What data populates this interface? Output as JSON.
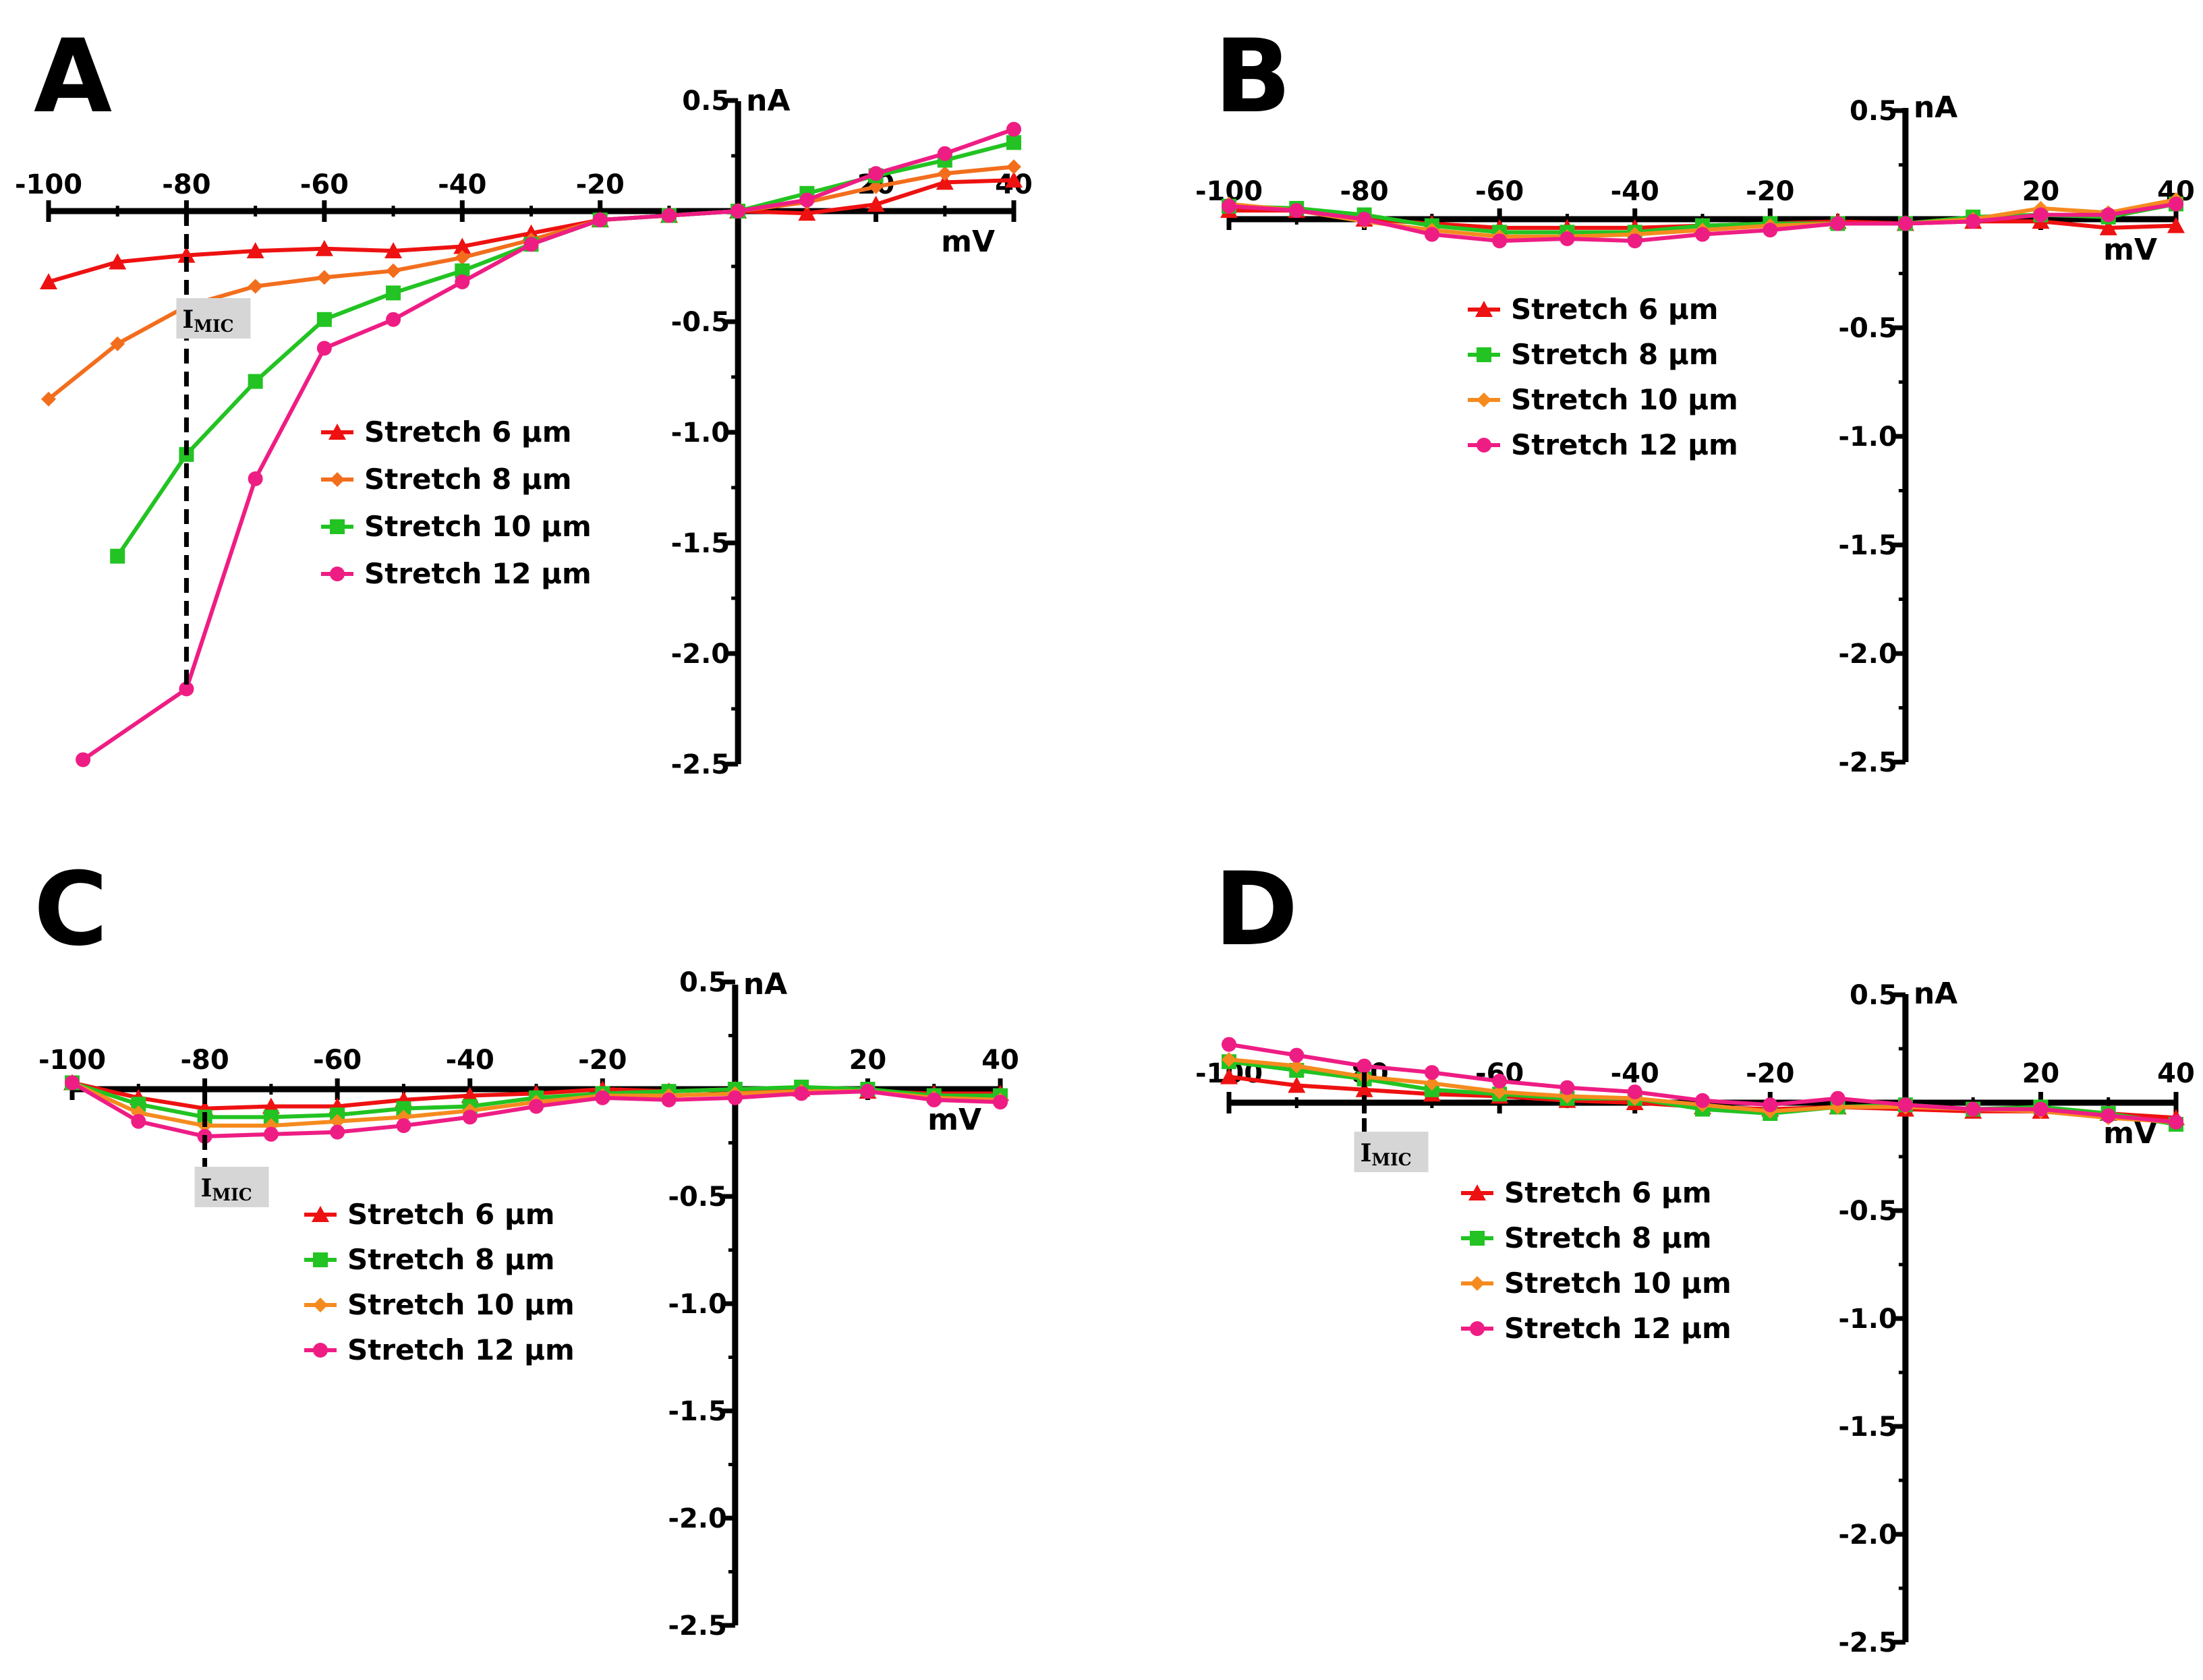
{
  "chart_data": [
    {
      "panel": "A",
      "type": "line",
      "xlabel": "mV",
      "ylabel": "nA",
      "x_ticks": [
        -100,
        -80,
        -60,
        -40,
        -20,
        20,
        40
      ],
      "y_ticks": [
        0.5,
        -0.5,
        -1.0,
        -1.5,
        -2.0,
        -2.5
      ],
      "xlim": [
        -100,
        40
      ],
      "ylim": [
        -2.5,
        0.5
      ],
      "annotation": {
        "label": "I",
        "subscript": "MIC",
        "x": -80
      },
      "series": [
        {
          "name": "Stretch 6 µm",
          "color": "#ee1111",
          "marker": "triangle",
          "x": [
            -100,
            -90,
            -80,
            -70,
            -60,
            -50,
            -40,
            -30,
            -20,
            -10,
            0,
            10,
            20,
            30,
            40
          ],
          "y": [
            -0.32,
            -0.23,
            -0.2,
            -0.18,
            -0.17,
            -0.18,
            -0.16,
            -0.1,
            -0.04,
            -0.02,
            0.0,
            -0.01,
            0.03,
            0.13,
            0.14
          ]
        },
        {
          "name": "Stretch 8 µm",
          "color": "#f26e1d",
          "marker": "diamond",
          "x": [
            -100,
            -90,
            -80,
            -70,
            -60,
            -50,
            -40,
            -30,
            -20,
            -10,
            0,
            10,
            20,
            30,
            40
          ],
          "y": [
            -0.85,
            -0.6,
            -0.43,
            -0.34,
            -0.3,
            -0.27,
            -0.21,
            -0.13,
            -0.04,
            -0.02,
            0.0,
            0.04,
            0.11,
            0.17,
            0.2
          ]
        },
        {
          "name": "Stretch 10 µm",
          "color": "#22c322",
          "marker": "square",
          "x": [
            -90,
            -80,
            -70,
            -60,
            -50,
            -40,
            -30,
            -20,
            -10,
            0,
            10,
            20,
            30,
            40
          ],
          "y": [
            -1.56,
            -1.1,
            -0.77,
            -0.49,
            -0.37,
            -0.27,
            -0.15,
            -0.04,
            -0.02,
            0.0,
            0.08,
            0.16,
            0.23,
            0.31
          ]
        },
        {
          "name": "Stretch 12 µm",
          "color": "#ee1d84",
          "marker": "circle",
          "x": [
            -95,
            -80,
            -70,
            -60,
            -50,
            -40,
            -30,
            -20,
            -10,
            0,
            10,
            20,
            30,
            40
          ],
          "y": [
            -2.48,
            -2.16,
            -1.21,
            -0.62,
            -0.49,
            -0.32,
            -0.15,
            -0.04,
            -0.02,
            0.0,
            0.05,
            0.17,
            0.26,
            0.37
          ]
        }
      ]
    },
    {
      "panel": "B",
      "type": "line",
      "xlabel": "mV",
      "ylabel": "nA",
      "x_ticks": [
        -100,
        -80,
        -60,
        -40,
        -20,
        20,
        40
      ],
      "y_ticks": [
        0.5,
        -0.5,
        -1.0,
        -1.5,
        -2.0,
        -2.5
      ],
      "xlim": [
        -100,
        40
      ],
      "ylim": [
        -2.5,
        0.5
      ],
      "series": [
        {
          "name": "Stretch 6 µm",
          "color": "#ee1111",
          "marker": "triangle",
          "x": [
            -100,
            -90,
            -80,
            -70,
            -60,
            -50,
            -40,
            -30,
            -20,
            -10,
            0,
            10,
            20,
            30,
            40
          ],
          "y": [
            0.04,
            0.04,
            0.0,
            -0.02,
            -0.04,
            -0.04,
            -0.04,
            -0.03,
            -0.02,
            -0.01,
            -0.02,
            -0.01,
            -0.01,
            -0.04,
            -0.03
          ]
        },
        {
          "name": "Stretch 8 µm",
          "color": "#22c322",
          "marker": "square",
          "x": [
            -100,
            -90,
            -80,
            -70,
            -60,
            -50,
            -40,
            -30,
            -20,
            -10,
            0,
            10,
            20,
            30,
            40
          ],
          "y": [
            0.06,
            0.05,
            0.02,
            -0.03,
            -0.06,
            -0.06,
            -0.06,
            -0.03,
            -0.02,
            -0.02,
            -0.02,
            0.01,
            0.02,
            0.01,
            0.07
          ]
        },
        {
          "name": "Stretch 10 µm",
          "color": "#f58b1f",
          "marker": "diamond",
          "x": [
            -100,
            -90,
            -80,
            -70,
            -60,
            -50,
            -40,
            -30,
            -20,
            -10,
            0,
            10,
            20,
            30,
            40
          ],
          "y": [
            0.07,
            0.04,
            -0.01,
            -0.05,
            -0.08,
            -0.08,
            -0.07,
            -0.05,
            -0.03,
            -0.02,
            -0.02,
            0.0,
            0.05,
            0.03,
            0.09
          ]
        },
        {
          "name": "Stretch 12 µm",
          "color": "#ee1d84",
          "marker": "circle",
          "x": [
            -100,
            -90,
            -80,
            -70,
            -60,
            -50,
            -40,
            -30,
            -20,
            -10,
            0,
            10,
            20,
            30,
            40
          ],
          "y": [
            0.06,
            0.04,
            0.0,
            -0.07,
            -0.1,
            -0.09,
            -0.1,
            -0.07,
            -0.05,
            -0.02,
            -0.02,
            -0.01,
            0.02,
            0.02,
            0.07
          ]
        }
      ]
    },
    {
      "panel": "C",
      "type": "line",
      "xlabel": "mV",
      "ylabel": "nA",
      "x_ticks": [
        -100,
        -80,
        -60,
        -40,
        -20,
        20,
        40
      ],
      "y_ticks": [
        0.5,
        -0.5,
        -1.0,
        -1.5,
        -2.0,
        -2.5
      ],
      "xlim": [
        -100,
        40
      ],
      "ylim": [
        -2.5,
        0.5
      ],
      "annotation": {
        "label": "I",
        "subscript": "MIC",
        "x": -80
      },
      "series": [
        {
          "name": "Stretch 6 µm",
          "color": "#ee1111",
          "marker": "triangle",
          "x": [
            -100,
            -90,
            -80,
            -70,
            -60,
            -50,
            -40,
            -30,
            -20,
            -10,
            0,
            10,
            20,
            30,
            40
          ],
          "y": [
            0.03,
            -0.04,
            -0.09,
            -0.08,
            -0.08,
            -0.05,
            -0.03,
            -0.02,
            0.0,
            -0.01,
            0.0,
            0.0,
            -0.01,
            -0.02,
            -0.02
          ]
        },
        {
          "name": "Stretch 8 µm",
          "color": "#22c322",
          "marker": "square",
          "x": [
            -100,
            -90,
            -80,
            -70,
            -60,
            -50,
            -40,
            -30,
            -20,
            -10,
            0,
            10,
            20,
            30,
            40
          ],
          "y": [
            0.03,
            -0.07,
            -0.13,
            -0.13,
            -0.12,
            -0.09,
            -0.08,
            -0.04,
            -0.02,
            -0.01,
            0.0,
            0.01,
            0.0,
            -0.03,
            -0.03
          ]
        },
        {
          "name": "Stretch 10 µm",
          "color": "#f58b1f",
          "marker": "diamond",
          "x": [
            -100,
            -90,
            -80,
            -70,
            -60,
            -50,
            -40,
            -30,
            -20,
            -10,
            0,
            10,
            20,
            30,
            40
          ],
          "y": [
            0.03,
            -0.11,
            -0.17,
            -0.17,
            -0.15,
            -0.13,
            -0.1,
            -0.06,
            -0.03,
            -0.03,
            -0.02,
            -0.01,
            -0.01,
            -0.04,
            -0.05
          ]
        },
        {
          "name": "Stretch 12 µm",
          "color": "#ee1d84",
          "marker": "circle",
          "x": [
            -100,
            -90,
            -80,
            -70,
            -60,
            -50,
            -40,
            -30,
            -20,
            -10,
            0,
            10,
            20,
            30,
            40
          ],
          "y": [
            0.03,
            -0.15,
            -0.22,
            -0.21,
            -0.2,
            -0.17,
            -0.13,
            -0.08,
            -0.04,
            -0.05,
            -0.04,
            -0.02,
            -0.01,
            -0.05,
            -0.06
          ]
        }
      ]
    },
    {
      "panel": "D",
      "type": "line",
      "xlabel": "mV",
      "ylabel": "nA",
      "x_ticks": [
        -100,
        -80,
        -60,
        -40,
        -20,
        20,
        40
      ],
      "y_ticks": [
        0.5,
        -0.5,
        -1.0,
        -1.5,
        -2.0,
        -2.5
      ],
      "xlim": [
        -100,
        40
      ],
      "ylim": [
        -2.5,
        0.5
      ],
      "annotation": {
        "label": "I",
        "subscript": "MIC",
        "x": -80
      },
      "series": [
        {
          "name": "Stretch 6 µm",
          "color": "#ee1111",
          "marker": "triangle",
          "x": [
            -100,
            -90,
            -80,
            -70,
            -60,
            -50,
            -40,
            -30,
            -20,
            -10,
            0,
            10,
            20,
            30,
            40
          ],
          "y": [
            0.12,
            0.08,
            0.06,
            0.04,
            0.03,
            0.01,
            0.0,
            -0.02,
            -0.03,
            -0.02,
            -0.03,
            -0.04,
            -0.04,
            -0.05,
            -0.07
          ]
        },
        {
          "name": "Stretch 8 µm",
          "color": "#22c322",
          "marker": "square",
          "x": [
            -100,
            -90,
            -80,
            -70,
            -60,
            -50,
            -40,
            -30,
            -20,
            -10,
            0,
            10,
            20,
            30,
            40
          ],
          "y": [
            0.19,
            0.15,
            0.11,
            0.06,
            0.04,
            0.02,
            0.02,
            -0.03,
            -0.05,
            -0.02,
            -0.01,
            -0.03,
            -0.02,
            -0.05,
            -0.1
          ]
        },
        {
          "name": "Stretch 10 µm",
          "color": "#f58b1f",
          "marker": "diamond",
          "x": [
            -100,
            -90,
            -80,
            -70,
            -60,
            -50,
            -40,
            -30,
            -20,
            -10,
            0,
            10,
            20,
            30,
            40
          ],
          "y": [
            0.2,
            0.17,
            0.12,
            0.09,
            0.05,
            0.03,
            0.02,
            -0.01,
            -0.04,
            -0.02,
            -0.02,
            -0.03,
            -0.04,
            -0.07,
            -0.09
          ]
        },
        {
          "name": "Stretch 12 µm",
          "color": "#ee1d84",
          "marker": "circle",
          "x": [
            -100,
            -90,
            -80,
            -70,
            -60,
            -50,
            -40,
            -30,
            -20,
            -10,
            0,
            10,
            20,
            30,
            40
          ],
          "y": [
            0.27,
            0.22,
            0.17,
            0.14,
            0.1,
            0.07,
            0.05,
            0.01,
            -0.01,
            0.02,
            -0.01,
            -0.03,
            -0.03,
            -0.06,
            -0.09
          ]
        }
      ]
    }
  ]
}
